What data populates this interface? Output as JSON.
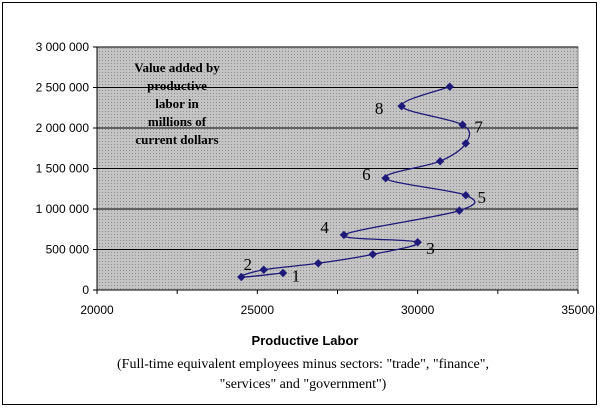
{
  "chart_data": {
    "type": "scatter",
    "title": "",
    "xlabel": "Productive Labor",
    "xlabel_note_lines": [
      "(Full-time equivalent employees minus sectors: \"trade\", \"finance\",",
      "\"services\" and \"government\")"
    ],
    "ylabel": "",
    "inset_text_lines": [
      "Value added by",
      "productive",
      "labor in",
      "millions of",
      "current dollars"
    ],
    "xlim": [
      20000,
      35000
    ],
    "ylim": [
      0,
      3000000
    ],
    "x_ticks": [
      20000,
      25000,
      30000,
      35000
    ],
    "x_tick_labels": [
      "20000",
      "25000",
      "30000",
      "35000"
    ],
    "y_ticks": [
      0,
      500000,
      1000000,
      1500000,
      2000000,
      2500000,
      3000000
    ],
    "y_tick_labels": [
      "0",
      "500 000",
      "1 000 000",
      "1 500 000",
      "2 000 000",
      "2 500 000",
      "3 000 000"
    ],
    "grid": "horizontal",
    "series": [
      {
        "color": "#1f1a7a",
        "points": [
          {
            "x": 25800,
            "y": 210000
          },
          {
            "x": 24500,
            "y": 160000
          },
          {
            "x": 25200,
            "y": 250000
          },
          {
            "x": 26900,
            "y": 330000
          },
          {
            "x": 28600,
            "y": 440000
          },
          {
            "x": 30000,
            "y": 590000
          },
          {
            "x": 27700,
            "y": 680000
          },
          {
            "x": 31300,
            "y": 980000
          },
          {
            "x": 31500,
            "y": 1170000
          },
          {
            "x": 29000,
            "y": 1380000
          },
          {
            "x": 30700,
            "y": 1590000
          },
          {
            "x": 31500,
            "y": 1810000
          },
          {
            "x": 31400,
            "y": 2040000
          },
          {
            "x": 29500,
            "y": 2270000
          },
          {
            "x": 31000,
            "y": 2510000
          }
        ]
      }
    ],
    "point_labels": [
      {
        "text": "1",
        "x": 26200,
        "y": 180000
      },
      {
        "text": "2",
        "x": 24700,
        "y": 320000
      },
      {
        "text": "3",
        "x": 30400,
        "y": 520000
      },
      {
        "text": "4",
        "x": 27100,
        "y": 780000
      },
      {
        "text": "5",
        "x": 32000,
        "y": 1150000
      },
      {
        "text": "6",
        "x": 28400,
        "y": 1430000
      },
      {
        "text": "7",
        "x": 31900,
        "y": 2020000
      },
      {
        "text": "8",
        "x": 28800,
        "y": 2250000
      }
    ]
  }
}
